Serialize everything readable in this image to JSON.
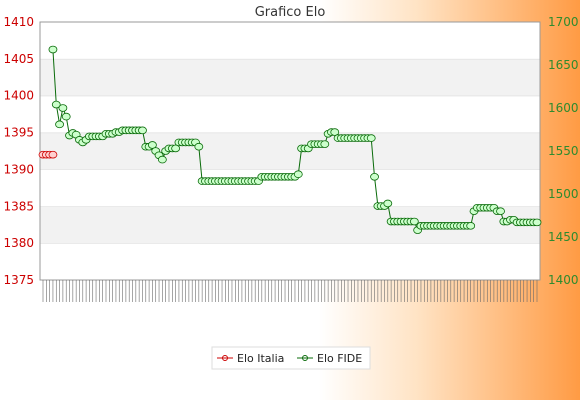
{
  "chart_data": {
    "type": "line",
    "title": "Grafico Elo",
    "axes": {
      "left": {
        "min": 1375,
        "max": 1410,
        "ticks": [
          1375,
          1380,
          1385,
          1390,
          1395,
          1400,
          1405,
          1410
        ]
      },
      "right": {
        "min": 1400,
        "max": 1700,
        "ticks": [
          1400,
          1450,
          1500,
          1550,
          1600,
          1650,
          1700
        ]
      }
    },
    "x_tick_count": 150,
    "grid": true,
    "legend_position": "bottom",
    "colors": {
      "italia": "#cc0000",
      "fide": "#0a6b0a",
      "marker_fill": "#ccffcc"
    },
    "series": [
      {
        "name": "Elo Italia",
        "axis": "left",
        "values": [
          [
            0,
            1392
          ],
          [
            1,
            1392
          ],
          [
            2,
            1392
          ],
          [
            3,
            1392
          ]
        ]
      },
      {
        "name": "Elo FIDE",
        "axis": "right",
        "values": [
          [
            3,
            1668
          ],
          [
            4,
            1604
          ],
          [
            5,
            1581
          ],
          [
            6,
            1600
          ],
          [
            7,
            1590
          ],
          [
            8,
            1568
          ],
          [
            9,
            1571
          ],
          [
            10,
            1569
          ],
          [
            11,
            1563
          ],
          [
            12,
            1560
          ],
          [
            13,
            1563
          ],
          [
            14,
            1567
          ],
          [
            15,
            1567
          ],
          [
            16,
            1567
          ],
          [
            17,
            1567
          ],
          [
            18,
            1567
          ],
          [
            19,
            1570
          ],
          [
            20,
            1570
          ],
          [
            21,
            1570
          ],
          [
            22,
            1572
          ],
          [
            23,
            1572
          ],
          [
            24,
            1574
          ],
          [
            25,
            1574
          ],
          [
            26,
            1574
          ],
          [
            27,
            1574
          ],
          [
            28,
            1574
          ],
          [
            29,
            1574
          ],
          [
            30,
            1574
          ],
          [
            31,
            1555
          ],
          [
            32,
            1555
          ],
          [
            33,
            1557
          ],
          [
            34,
            1550
          ],
          [
            35,
            1545
          ],
          [
            36,
            1540
          ],
          [
            37,
            1550
          ],
          [
            38,
            1553
          ],
          [
            39,
            1553
          ],
          [
            40,
            1553
          ],
          [
            41,
            1560
          ],
          [
            42,
            1560
          ],
          [
            43,
            1560
          ],
          [
            44,
            1560
          ],
          [
            45,
            1560
          ],
          [
            46,
            1560
          ],
          [
            47,
            1555
          ],
          [
            48,
            1515
          ],
          [
            49,
            1515
          ],
          [
            50,
            1515
          ],
          [
            51,
            1515
          ],
          [
            52,
            1515
          ],
          [
            53,
            1515
          ],
          [
            54,
            1515
          ],
          [
            55,
            1515
          ],
          [
            56,
            1515
          ],
          [
            57,
            1515
          ],
          [
            58,
            1515
          ],
          [
            59,
            1515
          ],
          [
            60,
            1515
          ],
          [
            61,
            1515
          ],
          [
            62,
            1515
          ],
          [
            63,
            1515
          ],
          [
            64,
            1515
          ],
          [
            65,
            1515
          ],
          [
            66,
            1520
          ],
          [
            67,
            1520
          ],
          [
            68,
            1520
          ],
          [
            69,
            1520
          ],
          [
            70,
            1520
          ],
          [
            71,
            1520
          ],
          [
            72,
            1520
          ],
          [
            73,
            1520
          ],
          [
            74,
            1520
          ],
          [
            75,
            1520
          ],
          [
            76,
            1520
          ],
          [
            77,
            1523
          ],
          [
            78,
            1553
          ],
          [
            79,
            1553
          ],
          [
            80,
            1553
          ],
          [
            81,
            1558
          ],
          [
            82,
            1558
          ],
          [
            83,
            1558
          ],
          [
            84,
            1558
          ],
          [
            85,
            1558
          ],
          [
            86,
            1570
          ],
          [
            87,
            1572
          ],
          [
            88,
            1572
          ],
          [
            89,
            1565
          ],
          [
            90,
            1565
          ],
          [
            91,
            1565
          ],
          [
            92,
            1565
          ],
          [
            93,
            1565
          ],
          [
            94,
            1565
          ],
          [
            95,
            1565
          ],
          [
            96,
            1565
          ],
          [
            97,
            1565
          ],
          [
            98,
            1565
          ],
          [
            99,
            1565
          ],
          [
            100,
            1520
          ],
          [
            101,
            1486
          ],
          [
            102,
            1486
          ],
          [
            103,
            1486
          ],
          [
            104,
            1489
          ],
          [
            105,
            1468
          ],
          [
            106,
            1468
          ],
          [
            107,
            1468
          ],
          [
            108,
            1468
          ],
          [
            109,
            1468
          ],
          [
            110,
            1468
          ],
          [
            111,
            1468
          ],
          [
            112,
            1468
          ],
          [
            113,
            1458
          ],
          [
            114,
            1463
          ],
          [
            115,
            1463
          ],
          [
            116,
            1463
          ],
          [
            117,
            1463
          ],
          [
            118,
            1463
          ],
          [
            119,
            1463
          ],
          [
            120,
            1463
          ],
          [
            121,
            1463
          ],
          [
            122,
            1463
          ],
          [
            123,
            1463
          ],
          [
            124,
            1463
          ],
          [
            125,
            1463
          ],
          [
            126,
            1463
          ],
          [
            127,
            1463
          ],
          [
            128,
            1463
          ],
          [
            129,
            1463
          ],
          [
            130,
            1480
          ],
          [
            131,
            1484
          ],
          [
            132,
            1484
          ],
          [
            133,
            1484
          ],
          [
            134,
            1484
          ],
          [
            135,
            1484
          ],
          [
            136,
            1484
          ],
          [
            137,
            1480
          ],
          [
            138,
            1480
          ],
          [
            139,
            1468
          ],
          [
            140,
            1468
          ],
          [
            141,
            1470
          ],
          [
            142,
            1470
          ],
          [
            143,
            1467
          ],
          [
            144,
            1467
          ],
          [
            145,
            1467
          ],
          [
            146,
            1467
          ],
          [
            147,
            1467
          ],
          [
            148,
            1467
          ],
          [
            149,
            1467
          ]
        ]
      }
    ]
  }
}
